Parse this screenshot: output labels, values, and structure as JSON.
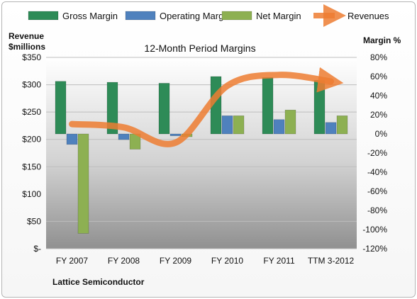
{
  "chart_data": {
    "type": "bar",
    "title": "12-Month Period Margins",
    "categories": [
      "FY 2007",
      "FY 2008",
      "FY 2009",
      "FY 2010",
      "FY 2011",
      "TTM 3-2012"
    ],
    "series": [
      {
        "name": "Gross Margin",
        "axis": "right",
        "kind": "bar",
        "color": "#2e8b57",
        "values": [
          55,
          54,
          53,
          60,
          59,
          56
        ]
      },
      {
        "name": "Operating Margin",
        "axis": "right",
        "kind": "bar",
        "color": "#4f81bd",
        "values": [
          -11,
          -6,
          -2,
          19,
          15,
          12
        ]
      },
      {
        "name": "Net Margin",
        "axis": "right",
        "kind": "bar",
        "color": "#8db052",
        "values": [
          -104,
          -16,
          -3,
          19,
          25,
          19
        ]
      },
      {
        "name": "Revenues",
        "axis": "left",
        "kind": "line",
        "color": "#ed7d31",
        "values": [
          228,
          222,
          194,
          298,
          318,
          306
        ]
      }
    ],
    "left_axis": {
      "label_line1": "Revenue",
      "label_line2": "$millions",
      "range": [
        0,
        350
      ],
      "ticks": [
        "$350",
        "$300",
        "$250",
        "$200",
        "$150",
        "$100",
        "$50",
        "$-"
      ]
    },
    "right_axis": {
      "label": "Margin %",
      "range": [
        -120,
        80
      ],
      "ticks": [
        "80%",
        "60%",
        "40%",
        "20%",
        "0%",
        "-20%",
        "-40%",
        "-60%",
        "-80%",
        "-100%",
        "-120%"
      ]
    },
    "legend_position": "top",
    "grid": true
  },
  "footer_label": "Lattice Semiconductor"
}
